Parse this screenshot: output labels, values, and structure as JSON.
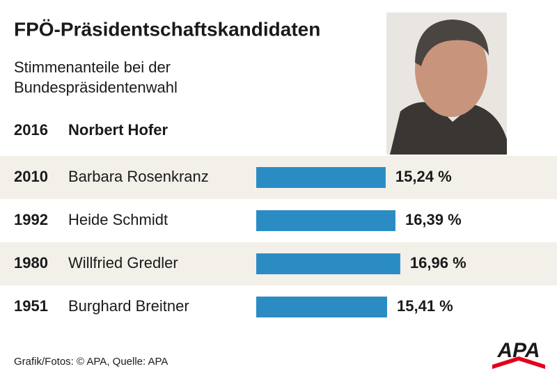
{
  "chart_data": {
    "type": "bar",
    "orientation": "horizontal",
    "title": "FPÖ-Präsidentschaftskandidaten",
    "subtitle": [
      "Stimmenanteile bei der",
      "Bundespräsidentenwahl"
    ],
    "highlight": {
      "year": "2016",
      "name": "Norbert Hofer"
    },
    "years": [
      "2010",
      "1992",
      "1980",
      "1951"
    ],
    "categories": [
      "Barbara Rosenkranz",
      "Heide Schmidt",
      "Willfried Gredler",
      "Burghard Breitner"
    ],
    "values": [
      15.24,
      16.39,
      16.96,
      15.41
    ],
    "value_labels": [
      "15,24 %",
      "16,39 %",
      "16,96 %",
      "15,41 %"
    ],
    "color": "#2b8cc4",
    "source": "Grafik/Fotos: © APA, Quelle: APA",
    "logo": "APA"
  }
}
